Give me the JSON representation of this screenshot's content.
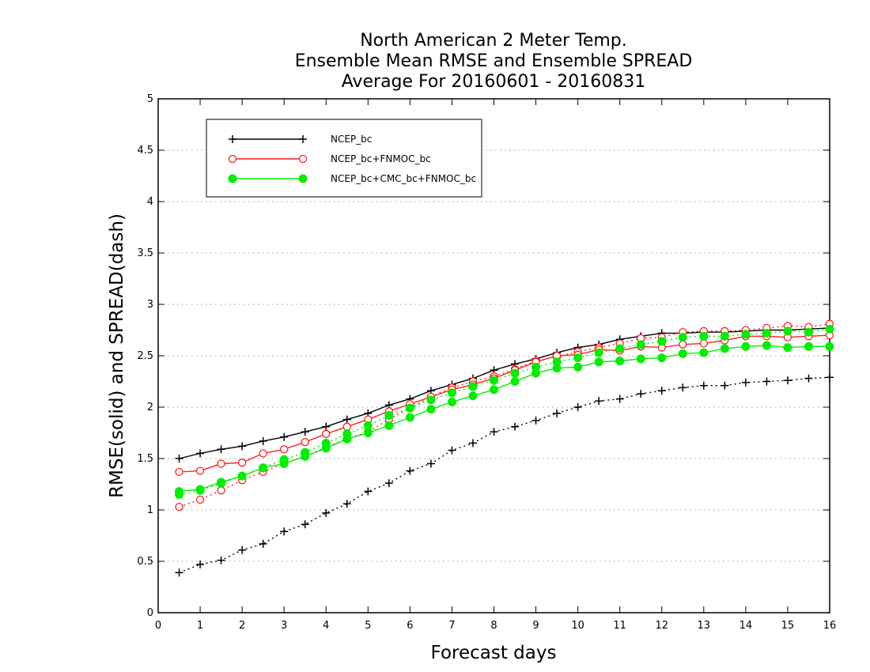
{
  "chart_data": {
    "type": "line",
    "title": [
      "North American 2 Meter Temp.",
      "Ensemble Mean RMSE and Ensemble SPREAD",
      "Average For 20160601 - 20160831"
    ],
    "xlabel": "Forecast days",
    "ylabel": "RMSE(solid) and SPREAD(dash)",
    "xlim": [
      0,
      16
    ],
    "ylim": [
      0,
      5
    ],
    "x_ticks": [
      "0",
      "1",
      "2",
      "3",
      "4",
      "5",
      "6",
      "7",
      "8",
      "9",
      "10",
      "11",
      "12",
      "13",
      "14",
      "15",
      "16"
    ],
    "y_ticks": [
      "0",
      "0.5",
      "1",
      "1.5",
      "2",
      "2.5",
      "3",
      "3.5",
      "4",
      "4.5",
      "5"
    ],
    "grid": true,
    "legend_position": "top-left",
    "x": [
      0.5,
      1,
      1.5,
      2,
      2.5,
      3,
      3.5,
      4,
      4.5,
      5,
      5.5,
      6,
      6.5,
      7,
      7.5,
      8,
      8.5,
      9,
      9.5,
      10,
      10.5,
      11,
      11.5,
      12,
      12.5,
      13,
      13.5,
      14,
      14.5,
      15,
      15.5,
      16
    ],
    "series": [
      {
        "name": "NCEP_bc",
        "color": "#000000",
        "marker": "plus",
        "rmse": [
          1.5,
          1.55,
          1.59,
          1.62,
          1.67,
          1.71,
          1.76,
          1.81,
          1.88,
          1.94,
          2.02,
          2.08,
          2.16,
          2.22,
          2.28,
          2.36,
          2.42,
          2.47,
          2.53,
          2.58,
          2.61,
          2.66,
          2.69,
          2.72,
          2.72,
          2.73,
          2.73,
          2.74,
          2.75,
          2.75,
          2.76,
          2.77
        ],
        "spread": [
          0.39,
          0.47,
          0.51,
          0.61,
          0.67,
          0.79,
          0.86,
          0.97,
          1.06,
          1.18,
          1.26,
          1.38,
          1.45,
          1.58,
          1.65,
          1.76,
          1.81,
          1.87,
          1.94,
          2.0,
          2.06,
          2.08,
          2.13,
          2.16,
          2.19,
          2.21,
          2.21,
          2.24,
          2.25,
          2.26,
          2.28,
          2.29
        ]
      },
      {
        "name": "NCEP_bc+FNMOC_bc",
        "color": "#ff2020",
        "marker": "open-circle",
        "rmse": [
          1.37,
          1.38,
          1.45,
          1.46,
          1.55,
          1.59,
          1.66,
          1.74,
          1.81,
          1.88,
          1.96,
          2.03,
          2.1,
          2.17,
          2.22,
          2.28,
          2.36,
          2.44,
          2.5,
          2.51,
          2.56,
          2.55,
          2.59,
          2.58,
          2.61,
          2.62,
          2.65,
          2.69,
          2.69,
          2.68,
          2.69,
          2.7
        ],
        "spread": [
          1.03,
          1.1,
          1.19,
          1.29,
          1.37,
          1.45,
          1.52,
          1.61,
          1.69,
          1.76,
          1.88,
          1.99,
          2.1,
          2.19,
          2.25,
          2.3,
          2.37,
          2.45,
          2.49,
          2.54,
          2.58,
          2.62,
          2.67,
          2.68,
          2.73,
          2.74,
          2.74,
          2.75,
          2.77,
          2.79,
          2.78,
          2.81
        ]
      },
      {
        "name": "NCEP_bc+CMC_bc+FNMOC_bc",
        "color": "#00ee00",
        "marker": "filled-circle",
        "rmse": [
          1.18,
          1.2,
          1.27,
          1.33,
          1.41,
          1.45,
          1.52,
          1.6,
          1.69,
          1.75,
          1.82,
          1.9,
          1.98,
          2.05,
          2.11,
          2.17,
          2.25,
          2.33,
          2.38,
          2.39,
          2.44,
          2.45,
          2.47,
          2.48,
          2.52,
          2.53,
          2.57,
          2.59,
          2.6,
          2.58,
          2.59,
          2.59
        ],
        "spread": [
          1.15,
          1.19,
          1.26,
          1.33,
          1.41,
          1.49,
          1.56,
          1.65,
          1.74,
          1.82,
          1.92,
          1.99,
          2.07,
          2.14,
          2.2,
          2.26,
          2.33,
          2.39,
          2.44,
          2.48,
          2.53,
          2.57,
          2.61,
          2.64,
          2.68,
          2.69,
          2.69,
          2.71,
          2.72,
          2.74,
          2.73,
          2.76
        ]
      }
    ]
  }
}
